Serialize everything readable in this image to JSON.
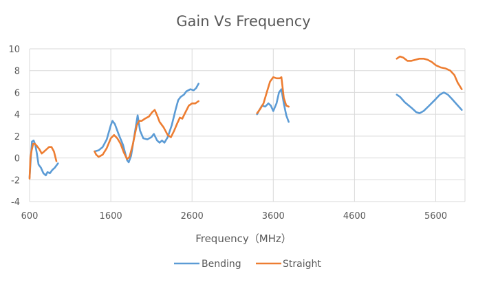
{
  "chart_data": {
    "type": "line",
    "title": "Gain Vs Frequency",
    "xlabel": "Frequency（MHz）",
    "ylabel": "",
    "xlim": [
      600,
      5960
    ],
    "ylim": [
      -4,
      10
    ],
    "xticks": [
      600,
      1600,
      2600,
      3600,
      4600,
      5600
    ],
    "yticks": [
      -4,
      -2,
      0,
      2,
      4,
      6,
      8,
      10
    ],
    "grid": true,
    "legend_position": "bottom",
    "series": [
      {
        "name": "Bending",
        "color": "#5B9BD5",
        "segments": [
          [
            [
              600,
              -1.8
            ],
            [
              615,
              0
            ],
            [
              630,
              1.5
            ],
            [
              650,
              1.6
            ],
            [
              670,
              1.2
            ],
            [
              690,
              0.4
            ],
            [
              710,
              -0.6
            ],
            [
              740,
              -0.9
            ],
            [
              770,
              -1.4
            ],
            [
              800,
              -1.6
            ],
            [
              820,
              -1.3
            ],
            [
              850,
              -1.4
            ],
            [
              880,
              -1.1
            ],
            [
              910,
              -0.9
            ],
            [
              950,
              -0.5
            ]
          ],
          [
            [
              1400,
              0.6
            ],
            [
              1450,
              0.7
            ],
            [
              1500,
              1.0
            ],
            [
              1550,
              1.7
            ],
            [
              1600,
              3.0
            ],
            [
              1620,
              3.4
            ],
            [
              1650,
              3.1
            ],
            [
              1700,
              2.1
            ],
            [
              1750,
              1.2
            ],
            [
              1800,
              -0.2
            ],
            [
              1820,
              -0.4
            ],
            [
              1850,
              0.2
            ],
            [
              1900,
              2.5
            ],
            [
              1930,
              3.9
            ],
            [
              1960,
              2.5
            ],
            [
              2000,
              1.8
            ],
            [
              2050,
              1.7
            ],
            [
              2100,
              1.9
            ],
            [
              2130,
              2.2
            ],
            [
              2170,
              1.6
            ],
            [
              2200,
              1.4
            ],
            [
              2230,
              1.6
            ],
            [
              2260,
              1.4
            ],
            [
              2300,
              1.9
            ],
            [
              2350,
              3.0
            ],
            [
              2400,
              4.5
            ],
            [
              2430,
              5.3
            ],
            [
              2460,
              5.6
            ],
            [
              2500,
              5.8
            ],
            [
              2530,
              6.1
            ],
            [
              2580,
              6.3
            ],
            [
              2620,
              6.2
            ],
            [
              2650,
              6.4
            ],
            [
              2680,
              6.8
            ]
          ],
          [
            [
              3400,
              4.0
            ],
            [
              3430,
              4.4
            ],
            [
              3460,
              4.8
            ],
            [
              3500,
              4.7
            ],
            [
              3540,
              5.0
            ],
            [
              3570,
              4.8
            ],
            [
              3600,
              4.3
            ],
            [
              3640,
              5.0
            ],
            [
              3670,
              6.0
            ],
            [
              3700,
              6.3
            ],
            [
              3730,
              5.0
            ],
            [
              3760,
              3.9
            ],
            [
              3790,
              3.3
            ]
          ],
          [
            [
              5120,
              5.8
            ],
            [
              5160,
              5.6
            ],
            [
              5220,
              5.1
            ],
            [
              5300,
              4.6
            ],
            [
              5360,
              4.2
            ],
            [
              5400,
              4.1
            ],
            [
              5450,
              4.3
            ],
            [
              5520,
              4.8
            ],
            [
              5600,
              5.4
            ],
            [
              5650,
              5.8
            ],
            [
              5700,
              6.0
            ],
            [
              5750,
              5.8
            ],
            [
              5800,
              5.4
            ],
            [
              5860,
              4.9
            ],
            [
              5920,
              4.4
            ]
          ]
        ]
      },
      {
        "name": "Straight",
        "color": "#ED7D31",
        "segments": [
          [
            [
              600,
              -1.9
            ],
            [
              610,
              0
            ],
            [
              625,
              0.7
            ],
            [
              645,
              1.3
            ],
            [
              665,
              1.3
            ],
            [
              690,
              1.1
            ],
            [
              720,
              0.8
            ],
            [
              750,
              0.4
            ],
            [
              780,
              0.6
            ],
            [
              810,
              0.8
            ],
            [
              840,
              1.0
            ],
            [
              870,
              1.0
            ],
            [
              900,
              0.6
            ],
            [
              930,
              -0.3
            ]
          ],
          [
            [
              1400,
              0.6
            ],
            [
              1420,
              0.3
            ],
            [
              1450,
              0.1
            ],
            [
              1500,
              0.3
            ],
            [
              1550,
              0.9
            ],
            [
              1600,
              1.8
            ],
            [
              1640,
              2.1
            ],
            [
              1680,
              1.8
            ],
            [
              1720,
              1.3
            ],
            [
              1760,
              0.5
            ],
            [
              1800,
              -0.1
            ],
            [
              1830,
              0.1
            ],
            [
              1870,
              1.2
            ],
            [
              1920,
              3.0
            ],
            [
              1950,
              3.4
            ],
            [
              1980,
              3.4
            ],
            [
              2020,
              3.6
            ],
            [
              2070,
              3.8
            ],
            [
              2110,
              4.2
            ],
            [
              2140,
              4.4
            ],
            [
              2170,
              3.9
            ],
            [
              2200,
              3.3
            ],
            [
              2250,
              2.8
            ],
            [
              2300,
              2.1
            ],
            [
              2340,
              1.9
            ],
            [
              2380,
              2.5
            ],
            [
              2420,
              3.2
            ],
            [
              2450,
              3.7
            ],
            [
              2480,
              3.6
            ],
            [
              2520,
              4.2
            ],
            [
              2560,
              4.8
            ],
            [
              2600,
              5.0
            ],
            [
              2640,
              5.0
            ],
            [
              2680,
              5.2
            ]
          ],
          [
            [
              3400,
              4.1
            ],
            [
              3440,
              4.5
            ],
            [
              3480,
              5.0
            ],
            [
              3520,
              6.0
            ],
            [
              3560,
              7.0
            ],
            [
              3600,
              7.4
            ],
            [
              3640,
              7.3
            ],
            [
              3680,
              7.3
            ],
            [
              3700,
              7.4
            ],
            [
              3730,
              5.5
            ],
            [
              3760,
              4.8
            ],
            [
              3790,
              4.7
            ]
          ],
          [
            [
              5120,
              9.1
            ],
            [
              5160,
              9.3
            ],
            [
              5200,
              9.2
            ],
            [
              5250,
              8.9
            ],
            [
              5300,
              8.9
            ],
            [
              5350,
              9.0
            ],
            [
              5400,
              9.1
            ],
            [
              5450,
              9.1
            ],
            [
              5500,
              9.0
            ],
            [
              5550,
              8.8
            ],
            [
              5600,
              8.5
            ],
            [
              5660,
              8.3
            ],
            [
              5720,
              8.2
            ],
            [
              5780,
              8.0
            ],
            [
              5830,
              7.6
            ],
            [
              5870,
              6.9
            ],
            [
              5920,
              6.3
            ]
          ]
        ]
      }
    ]
  }
}
